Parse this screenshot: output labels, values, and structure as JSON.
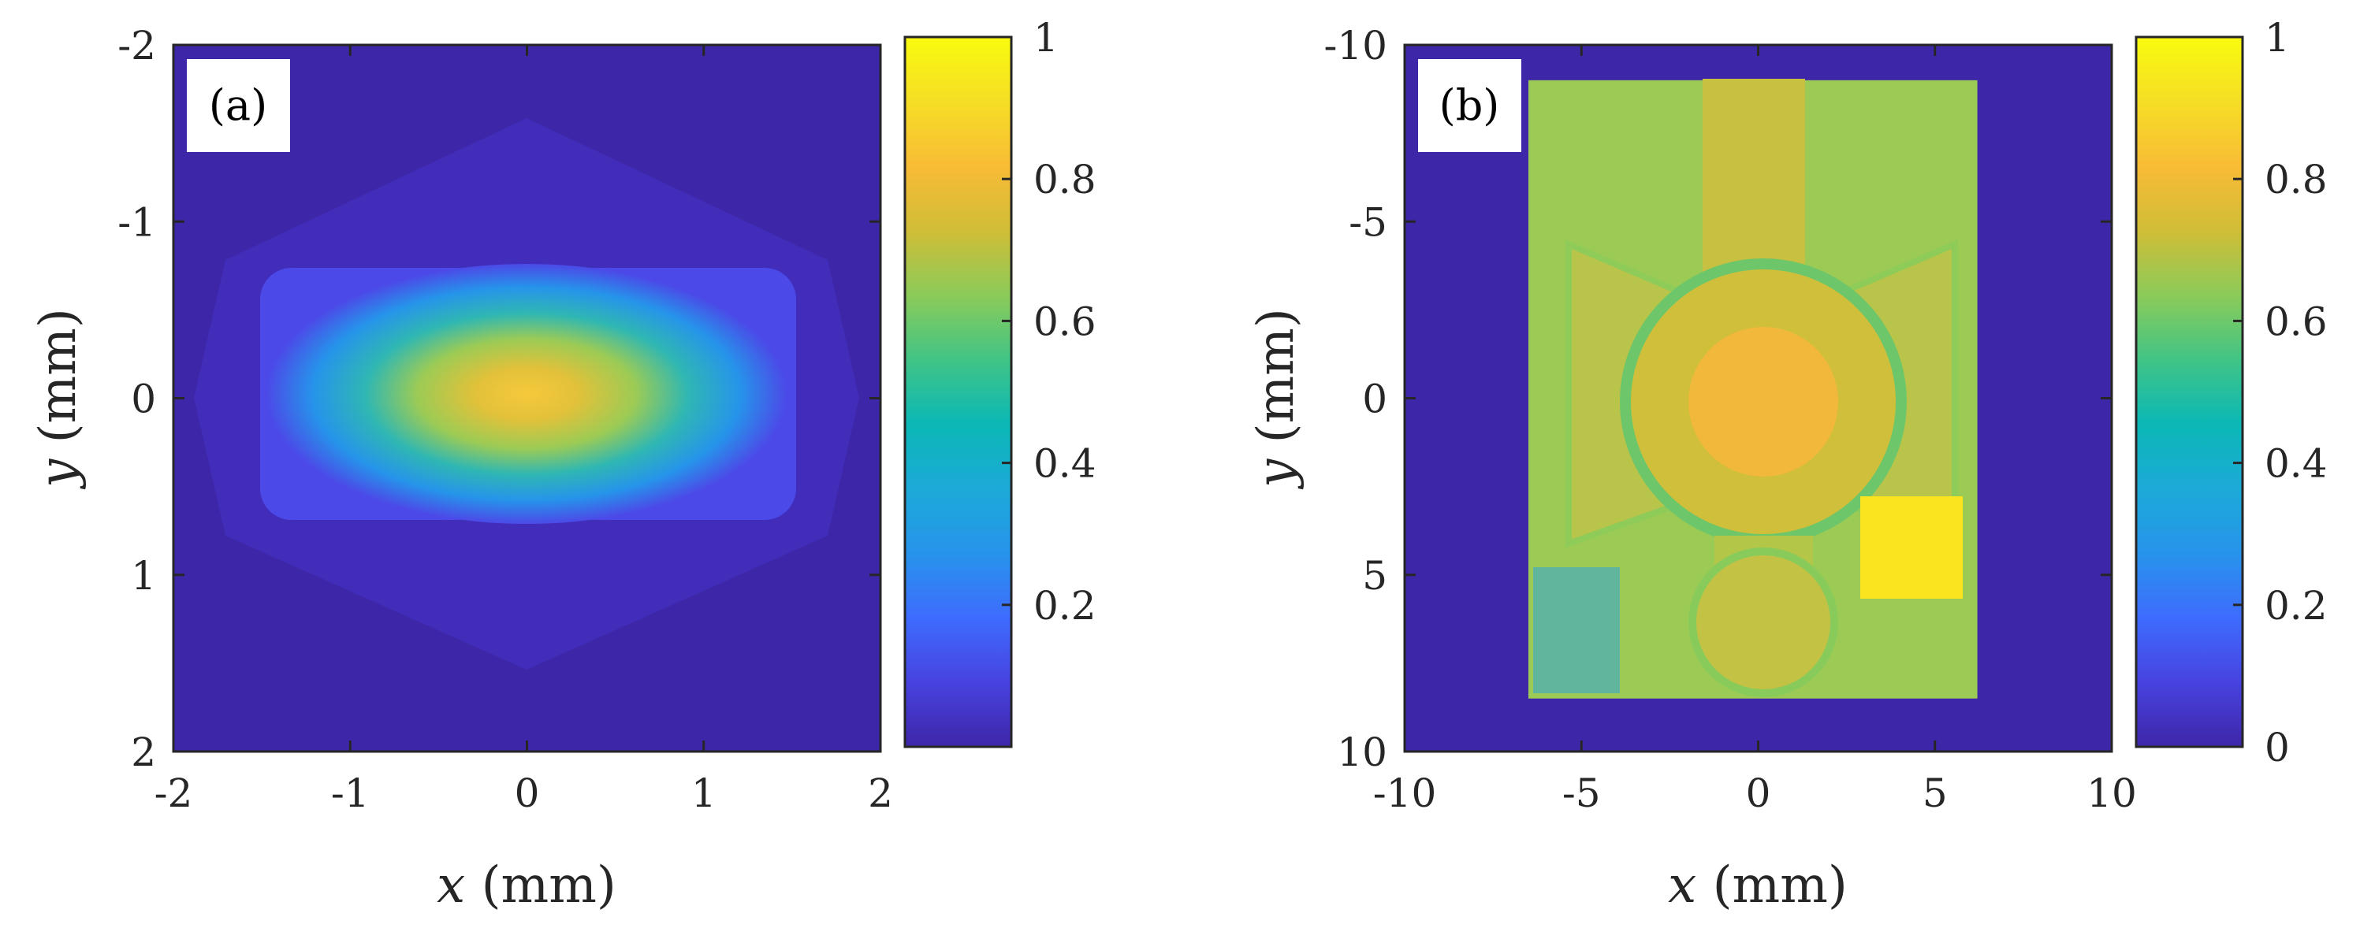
{
  "chart_data": [
    {
      "type": "heatmap",
      "panel_label": "(a)",
      "description_field": "Gaussian-like beam intensity centered at origin, elongated along x, rectangular-ish support",
      "x": {
        "label_var": "x",
        "label_unit": " (mm)",
        "lim": [
          -2,
          2
        ],
        "ticks": [
          -2,
          -1,
          0,
          1,
          2
        ],
        "tick_labels": [
          "-2",
          "-1",
          "0",
          "1",
          "2"
        ]
      },
      "y": {
        "label_var": "y",
        "label_unit": " (mm)",
        "lim": [
          -2,
          2
        ],
        "reversed": true,
        "ticks": [
          -2,
          -1,
          0,
          1,
          2
        ],
        "tick_labels": [
          "-2",
          "-1",
          "0",
          "1",
          "2"
        ]
      },
      "colorbar": {
        "lim": [
          0,
          1
        ],
        "ticks": [
          0.2,
          0.4,
          0.6,
          0.8,
          1
        ],
        "tick_labels": [
          "0.2",
          "0.4",
          "0.6",
          "0.8",
          "1"
        ]
      },
      "peak": {
        "x": 0,
        "y": 0,
        "value": 0.85
      },
      "sigma_x_mm": 1.0,
      "sigma_y_mm": 0.45,
      "support_half_width_mm": [
        1.5,
        0.65
      ]
    },
    {
      "type": "heatmap",
      "panel_label": "(b)",
      "description_field": "Normalized image of an ornamental object within rectangular region",
      "x": {
        "label_var": "x",
        "label_unit": " (mm)",
        "lim": [
          -10,
          10
        ],
        "ticks": [
          -10,
          -5,
          0,
          5,
          10
        ],
        "tick_labels": [
          "-10",
          "-5",
          "0",
          "5",
          "10"
        ]
      },
      "y": {
        "label_var": "y",
        "label_unit": " (mm)",
        "lim": [
          -10,
          10
        ],
        "reversed": true,
        "ticks": [
          -10,
          -5,
          0,
          5,
          10
        ],
        "tick_labels": [
          "-10",
          "-5",
          "0",
          "5",
          "10"
        ]
      },
      "colorbar": {
        "lim": [
          0,
          1
        ],
        "ticks": [
          0,
          0.2,
          0.4,
          0.6,
          0.8,
          1
        ],
        "tick_labels": [
          "0",
          "0.2",
          "0.4",
          "0.6",
          "0.8",
          "1"
        ]
      },
      "image_region_mm": {
        "x": [
          -6.5,
          6.2
        ],
        "y": [
          -9,
          8.5
        ]
      },
      "background_value": 0
    }
  ],
  "palette": [
    "#3e26a8",
    "#4743e0",
    "#3e6cfe",
    "#2794eb",
    "#1caad8",
    "#0bb8b6",
    "#41c486",
    "#8ccb58",
    "#d0bd37",
    "#f9bc36",
    "#f5de25",
    "#f9fb0e"
  ]
}
